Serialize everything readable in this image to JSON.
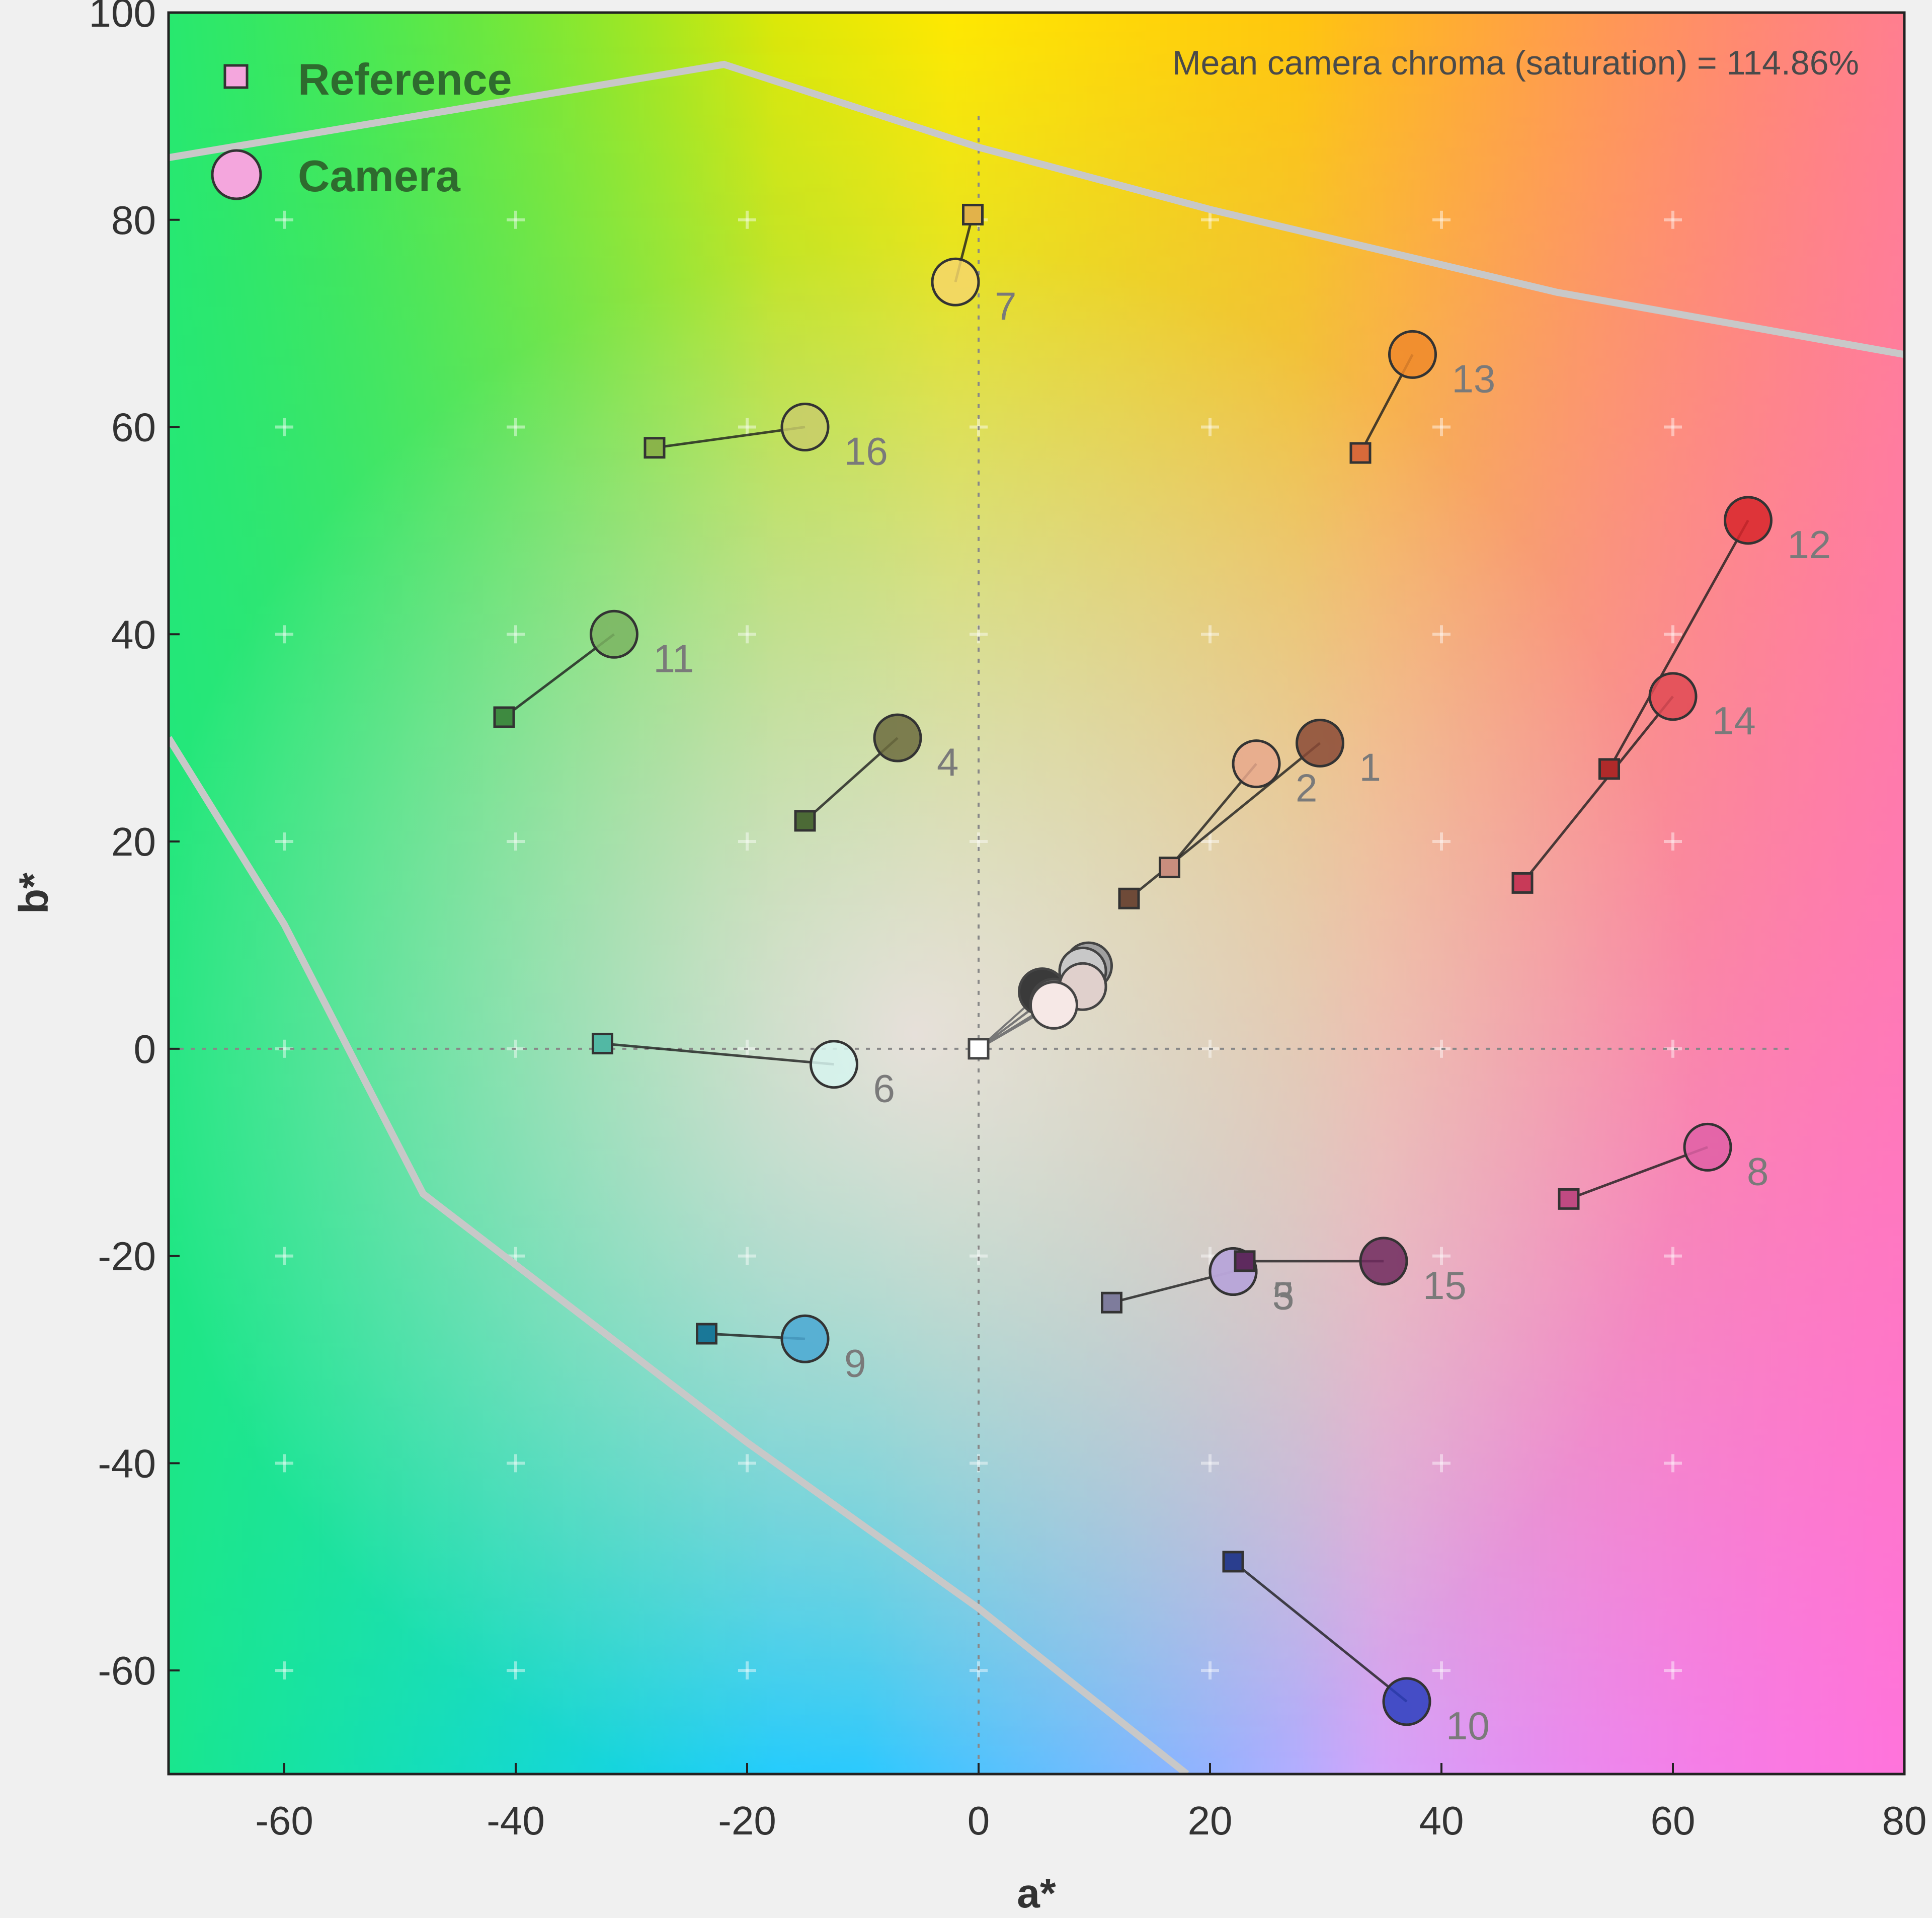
{
  "chart_data": {
    "type": "scatter",
    "xlabel": "a*",
    "ylabel": "b*",
    "xlim": [
      -70,
      80
    ],
    "ylim": [
      -70,
      100
    ],
    "xticks": [
      -60,
      -40,
      -20,
      0,
      20,
      40,
      60,
      80
    ],
    "yticks": [
      100,
      80,
      60,
      40,
      20,
      0,
      -20,
      -40,
      -60
    ],
    "annotation": "Mean camera chroma (saturation) = 114.86%",
    "legend": {
      "position": "top-left",
      "entries": [
        {
          "name": "Reference",
          "marker": "square",
          "color": "#f4a6dd"
        },
        {
          "name": "Camera",
          "marker": "circle",
          "color": "#f4a6dd"
        }
      ]
    },
    "gamut_boundary": [
      {
        "a": -70,
        "b": 86
      },
      {
        "a": -22,
        "b": 95
      },
      {
        "a": 0,
        "b": 87
      },
      {
        "a": 20,
        "b": 81
      },
      {
        "a": 50,
        "b": 73
      },
      {
        "a": 80,
        "b": 67
      }
    ],
    "gamut_boundary_lower": [
      {
        "a": -70,
        "b": 30
      },
      {
        "a": -60,
        "b": 12
      },
      {
        "a": -48,
        "b": -14
      },
      {
        "a": -20,
        "b": -38
      },
      {
        "a": 0,
        "b": -54
      },
      {
        "a": 18,
        "b": -70
      }
    ],
    "patches": [
      {
        "label": "1",
        "ref": [
          13,
          14.5
        ],
        "cam": [
          29.5,
          29.5
        ],
        "ref_color": "#6e4a38",
        "cam_color": "#8a4a36"
      },
      {
        "label": "2",
        "ref": [
          16.5,
          17.5
        ],
        "cam": [
          24,
          27.5
        ],
        "ref_color": "#c88e7e",
        "cam_color": "#e8a88c"
      },
      {
        "label": "3",
        "ref": [
          11.5,
          -24.5
        ],
        "cam": [
          22,
          -21.5
        ],
        "ref_color": "#7e7c9c",
        "cam_color": "#b8a6d8"
      },
      {
        "label": "4",
        "ref": [
          -15,
          22
        ],
        "cam": [
          -7,
          30
        ],
        "ref_color": "#4c6a36",
        "cam_color": "#6c6c3e"
      },
      {
        "label": "5",
        "ref": [
          23,
          -20.5
        ],
        "cam": [
          22,
          -21.5
        ],
        "ref_color": "#5e3a74",
        "cam_color": "#b8a6d8"
      },
      {
        "label": "6",
        "ref": [
          -32.5,
          0.5
        ],
        "cam": [
          -12.5,
          -1.5
        ],
        "ref_color": "#52b8a4",
        "cam_color": "#d6f4ee"
      },
      {
        "label": "7",
        "ref": [
          -0.5,
          80.5
        ],
        "cam": [
          -2,
          74
        ],
        "ref_color": "#e2b24a",
        "cam_color": "#f4d66a"
      },
      {
        "label": "8",
        "ref": [
          51,
          -14.5
        ],
        "cam": [
          63,
          -9.5
        ],
        "ref_color": "#c04a82",
        "cam_color": "#e060a6"
      },
      {
        "label": "9",
        "ref": [
          -23.5,
          -27.5
        ],
        "cam": [
          -15,
          -28
        ],
        "ref_color": "#1a7898",
        "cam_color": "#4aa8d4"
      },
      {
        "label": "10",
        "ref": [
          22,
          -49.5
        ],
        "cam": [
          37,
          -63
        ],
        "ref_color": "#2a3e8e",
        "cam_color": "#2a3ebe"
      },
      {
        "label": "11",
        "ref": [
          -41,
          32
        ],
        "cam": [
          -31.5,
          40
        ],
        "ref_color": "#3e8a40",
        "cam_color": "#7ab462"
      },
      {
        "label": "12",
        "ref": [
          54.5,
          27
        ],
        "cam": [
          66.5,
          51
        ],
        "ref_color": "#b02a2a",
        "cam_color": "#d8262a"
      },
      {
        "label": "13",
        "ref": [
          33,
          57.5
        ],
        "cam": [
          37.5,
          67
        ],
        "ref_color": "#d86a3a",
        "cam_color": "#f08a2a"
      },
      {
        "label": "14",
        "ref": [
          47,
          16
        ],
        "cam": [
          60,
          34
        ],
        "ref_color": "#c83a58",
        "cam_color": "#e04a54"
      },
      {
        "label": "15",
        "ref": [
          23,
          -20.5
        ],
        "cam": [
          35,
          -20.5
        ],
        "ref_color": "#5e2a5e",
        "cam_color": "#6e2a5e"
      },
      {
        "label": "16",
        "ref": [
          -28,
          58
        ],
        "cam": [
          -15,
          60
        ],
        "ref_color": "#8ab44a",
        "cam_color": "#c8cc6a"
      }
    ],
    "neutral_refs": [
      {
        "a": 0,
        "b": 0,
        "color": "#ffffff"
      }
    ],
    "neutral_cams": [
      {
        "a": 9.5,
        "b": 8,
        "color": "#a0a0a0"
      },
      {
        "a": 9,
        "b": 7.5,
        "color": "#c8c8c8"
      },
      {
        "a": 5.5,
        "b": 5.5,
        "color": "#3a3a3a"
      },
      {
        "a": 6.5,
        "b": 4.5,
        "color": "#606060"
      },
      {
        "a": 9,
        "b": 6,
        "color": "#e0d0cc"
      },
      {
        "a": 6.5,
        "b": 4.2,
        "color": "#f6e8e6"
      }
    ]
  }
}
